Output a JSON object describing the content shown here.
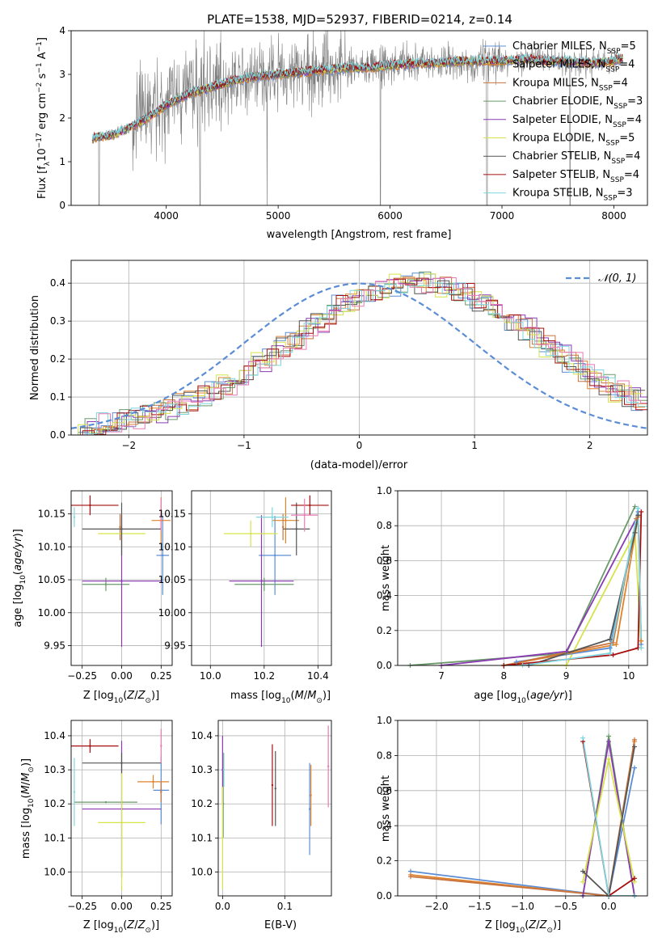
{
  "figure_title": "PLATE=1538, MJD=52937, FIBERID=0214, z=0.14",
  "colors": {
    "cMILES": "#5b8dd6",
    "sMILES": "#e0822b",
    "kMILES": "#c8743e",
    "cELODIE": "#6a9a6a",
    "sELODIE": "#8a3bb3",
    "kELODIE": "#d6e34a",
    "cSTELIB": "#555555",
    "sSTELIB": "#a50f0f",
    "kSTELIB": "#7fd6e0",
    "pink": "#e87ab5",
    "data": "#808080",
    "gauss": "#5b8dd6"
  },
  "chart_data": [
    {
      "id": "spectrum",
      "type": "line",
      "title": "PLATE=1538, MJD=52937, FIBERID=0214, z=0.14",
      "xlabel": "wavelength [Angstrom, rest frame]",
      "ylabel": "Flux [f_λ 10^-17 erg cm^-2 s^-1 A^-1]",
      "xlim": [
        3150,
        8300
      ],
      "ylim": [
        0,
        4
      ],
      "xticks": [
        "4000",
        "5000",
        "6000",
        "7000",
        "8000"
      ],
      "yticks": [
        "0",
        "1",
        "2",
        "3",
        "4"
      ],
      "grid": false,
      "legend_position": "top-right",
      "continuum_model": {
        "x": [
          3350,
          3500,
          3650,
          3800,
          4000,
          4200,
          4400,
          4600,
          4800,
          5000,
          5200,
          5400,
          5600,
          5800,
          6000,
          6200,
          6400,
          6600,
          6800,
          7000,
          7200,
          7400,
          7600,
          7800,
          8000,
          8050
        ],
        "y": [
          1.55,
          1.6,
          1.75,
          1.95,
          2.3,
          2.55,
          2.7,
          2.85,
          2.95,
          3.0,
          3.05,
          3.1,
          3.15,
          3.15,
          3.2,
          3.25,
          3.25,
          3.3,
          3.3,
          3.3,
          3.35,
          3.3,
          3.3,
          3.25,
          3.3,
          3.35
        ]
      },
      "series": [
        {
          "name": "Chabrier MILES, N_SSP=5",
          "label_main": "Chabrier MILES, N",
          "label_sub": "SSP",
          "label_tail": "=5",
          "color_key": "cMILES"
        },
        {
          "name": "Salpeter MILES, N_SSP=4",
          "label_main": "Salpeter MILES, N",
          "label_sub": "SSP",
          "label_tail": "=4",
          "color_key": "sMILES"
        },
        {
          "name": "Kroupa MILES, N_SSP=4",
          "label_main": "Kroupa MILES, N",
          "label_sub": "SSP",
          "label_tail": "=4",
          "color_key": "kMILES"
        },
        {
          "name": "Chabrier ELODIE, N_SSP=3",
          "label_main": "Chabrier ELODIE, N",
          "label_sub": "SSP",
          "label_tail": "=3",
          "color_key": "cELODIE"
        },
        {
          "name": "Salpeter ELODIE, N_SSP=4",
          "label_main": "Salpeter ELODIE, N",
          "label_sub": "SSP",
          "label_tail": "=4",
          "color_key": "sELODIE"
        },
        {
          "name": "Kroupa ELODIE, N_SSP=5",
          "label_main": "Kroupa ELODIE, N",
          "label_sub": "SSP",
          "label_tail": "=5",
          "color_key": "kELODIE"
        },
        {
          "name": "Chabrier STELIB, N_SSP=4",
          "label_main": "Chabrier STELIB, N",
          "label_sub": "SSP",
          "label_tail": "=4",
          "color_key": "cSTELIB"
        },
        {
          "name": "Salpeter STELIB, N_SSP=4",
          "label_main": "Salpeter STELIB, N",
          "label_sub": "SSP",
          "label_tail": "=4",
          "color_key": "sSTELIB"
        },
        {
          "name": "Kroupa STELIB, N_SSP=3",
          "label_main": "Kroupa STELIB, N",
          "label_sub": "SSP",
          "label_tail": "=3",
          "color_key": "kSTELIB"
        }
      ]
    },
    {
      "id": "residuals",
      "type": "bar",
      "xlabel": "(data-model)/error",
      "ylabel": "Normed distribution",
      "xlim": [
        -2.5,
        2.5
      ],
      "ylim": [
        0,
        0.46
      ],
      "xticks": [
        "−2",
        "−1",
        "0",
        "1",
        "2"
      ],
      "yticks": [
        "0.0",
        "0.1",
        "0.2",
        "0.3",
        "0.4"
      ],
      "grid": true,
      "bin_width": 0.1,
      "gaussian_legend": "𝒩(0, 1)",
      "legend_position": "top-right",
      "reference_histogram": [
        0.02,
        0.02,
        0.03,
        0.035,
        0.04,
        0.045,
        0.05,
        0.06,
        0.07,
        0.08,
        0.09,
        0.1,
        0.115,
        0.135,
        0.15,
        0.17,
        0.19,
        0.21,
        0.235,
        0.255,
        0.28,
        0.3,
        0.32,
        0.34,
        0.355,
        0.37,
        0.38,
        0.39,
        0.395,
        0.4,
        0.4,
        0.395,
        0.39,
        0.38,
        0.37,
        0.355,
        0.34,
        0.32,
        0.3,
        0.28,
        0.255,
        0.235,
        0.21,
        0.19,
        0.17,
        0.15,
        0.135,
        0.115,
        0.1,
        0.09
      ]
    },
    {
      "id": "age_vs_Z",
      "type": "scatter",
      "xlabel": "Z [log10(Z/Z⊙)]",
      "ylabel": "age  [log10(age/yr)]",
      "xlim": [
        -0.32,
        0.32
      ],
      "ylim": [
        9.92,
        10.185
      ],
      "xticks": [
        "−0.25",
        "0.00",
        "0.25"
      ],
      "yticks": [
        "9.95",
        "10.00",
        "10.05",
        "10.10",
        "10.15"
      ],
      "grid": true,
      "points": [
        {
          "color_key": "cMILES",
          "x": 0.26,
          "xerr": 0.04,
          "y": 10.087,
          "yerr": 0.06
        },
        {
          "color_key": "sMILES",
          "x": 0.25,
          "xerr": 0.06,
          "y": 10.14,
          "yerr": 0.035
        },
        {
          "color_key": "kMILES",
          "x": -0.01,
          "xerr": 0.0,
          "y": 10.13,
          "yerr": 0.02
        },
        {
          "color_key": "cELODIE",
          "x": -0.1,
          "xerr": 0.15,
          "y": 10.043,
          "yerr": 0.01
        },
        {
          "color_key": "sELODIE",
          "x": 0.0,
          "xerr": 0.25,
          "y": 10.048,
          "yerr": 0.1
        },
        {
          "color_key": "kELODIE",
          "x": 0.0,
          "xerr": 0.15,
          "y": 10.12,
          "yerr": 0.02
        },
        {
          "color_key": "cSTELIB",
          "x": 0.0,
          "xerr": 0.25,
          "y": 10.127,
          "yerr": 0.04
        },
        {
          "color_key": "sSTELIB",
          "x": -0.2,
          "xerr": 0.18,
          "y": 10.163,
          "yerr": 0.015
        },
        {
          "color_key": "kSTELIB",
          "x": -0.3,
          "xerr": 0.0,
          "y": 10.145,
          "yerr": 0.015
        },
        {
          "color_key": "pink",
          "x": 0.25,
          "xerr": 0.0,
          "y": 10.148,
          "yerr": 0.025
        }
      ]
    },
    {
      "id": "age_vs_mass",
      "type": "scatter",
      "xlabel": "mass [log10(M/M⊙)]",
      "ylabel": "",
      "xlim": [
        9.93,
        10.45
      ],
      "ylim": [
        9.92,
        10.185
      ],
      "xticks": [
        "10.0",
        "10.2",
        "10.4"
      ],
      "yticks": [
        "9.95",
        "10.00",
        "10.05",
        "10.10",
        "10.15"
      ],
      "grid": true,
      "points": [
        {
          "color_key": "cMILES",
          "x": 10.24,
          "xerr": 0.06,
          "y": 10.087,
          "yerr": 0.06
        },
        {
          "color_key": "sMILES",
          "x": 10.28,
          "xerr": 0.05,
          "y": 10.14,
          "yerr": 0.035
        },
        {
          "color_key": "kMILES",
          "x": 10.27,
          "xerr": 0.0,
          "y": 10.13,
          "yerr": 0.02
        },
        {
          "color_key": "cELODIE",
          "x": 10.2,
          "xerr": 0.11,
          "y": 10.043,
          "yerr": 0.01
        },
        {
          "color_key": "sELODIE",
          "x": 10.19,
          "xerr": 0.12,
          "y": 10.048,
          "yerr": 0.1
        },
        {
          "color_key": "kELODIE",
          "x": 10.15,
          "xerr": 0.1,
          "y": 10.12,
          "yerr": 0.02
        },
        {
          "color_key": "cSTELIB",
          "x": 10.32,
          "xerr": 0.05,
          "y": 10.127,
          "yerr": 0.04
        },
        {
          "color_key": "sSTELIB",
          "x": 10.37,
          "xerr": 0.07,
          "y": 10.163,
          "yerr": 0.015
        },
        {
          "color_key": "kSTELIB",
          "x": 10.23,
          "xerr": 0.06,
          "y": 10.145,
          "yerr": 0.015
        },
        {
          "color_key": "pink",
          "x": 10.35,
          "xerr": 0.05,
          "y": 10.148,
          "yerr": 0.025
        }
      ]
    },
    {
      "id": "mass_weight_vs_age",
      "type": "line",
      "xlabel": "age  [log10(age/yr)]",
      "ylabel": "mass weight",
      "xlim": [
        6.3,
        10.3
      ],
      "ylim": [
        0,
        1
      ],
      "xticks": [
        "7",
        "8",
        "9",
        "10"
      ],
      "yticks": [
        "0.0",
        "0.2",
        "0.4",
        "0.6",
        "0.8",
        "1.0"
      ],
      "grid": true,
      "series": [
        {
          "color_key": "cELODIE",
          "x": [
            6.5,
            9.0,
            10.1
          ],
          "y": [
            0.0,
            0.07,
            0.91
          ]
        },
        {
          "color_key": "sELODIE",
          "x": [
            7.0,
            9.0,
            10.15
          ],
          "y": [
            0.0,
            0.08,
            0.86
          ]
        },
        {
          "color_key": "kELODIE",
          "x": [
            8.0,
            9.0,
            10.1,
            10.2
          ],
          "y": [
            0.0,
            0.0,
            0.76,
            0.1
          ]
        },
        {
          "color_key": "cMILES",
          "x": [
            8.2,
            9.7,
            10.15,
            10.2
          ],
          "y": [
            0.02,
            0.1,
            0.88,
            0.12
          ]
        },
        {
          "color_key": "sMILES",
          "x": [
            8.0,
            9.8,
            10.15,
            10.2
          ],
          "y": [
            0.0,
            0.12,
            0.85,
            0.14
          ]
        },
        {
          "color_key": "kMILES",
          "x": [
            8.0,
            9.75,
            10.12
          ],
          "y": [
            0.0,
            0.13,
            0.84
          ]
        },
        {
          "color_key": "cSTELIB",
          "x": [
            8.4,
            9.7,
            10.1,
            10.15
          ],
          "y": [
            0.0,
            0.15,
            0.76,
            0.86
          ]
        },
        {
          "color_key": "sSTELIB",
          "x": [
            8.0,
            9.75,
            10.15,
            10.2
          ],
          "y": [
            0.0,
            0.06,
            0.1,
            0.88
          ]
        },
        {
          "color_key": "kSTELIB",
          "x": [
            8.3,
            9.7,
            10.15,
            10.2
          ],
          "y": [
            0.0,
            0.07,
            0.9,
            0.1
          ]
        }
      ]
    },
    {
      "id": "mass_vs_Z",
      "type": "scatter",
      "xlabel": "Z [log10(Z/Z⊙)]",
      "ylabel": "mass [log10(M/M⊙)]",
      "xlim": [
        -0.32,
        0.32
      ],
      "ylim": [
        9.93,
        10.445
      ],
      "xticks": [
        "−0.25",
        "0.00",
        "0.25"
      ],
      "yticks": [
        "10.0",
        "10.1",
        "10.2",
        "10.3",
        "10.4"
      ],
      "grid": true,
      "points": [
        {
          "color_key": "cMILES",
          "x": 0.25,
          "xerr": 0.05,
          "y": 10.24,
          "yerr": 0.1
        },
        {
          "color_key": "sMILES",
          "x": 0.2,
          "xerr": 0.1,
          "y": 10.265,
          "yerr": 0.02
        },
        {
          "color_key": "kMILES",
          "x": 0.25,
          "xerr": 0.0,
          "y": 10.235,
          "yerr": 0.03
        },
        {
          "color_key": "cELODIE",
          "x": -0.1,
          "xerr": 0.2,
          "y": 10.205,
          "yerr": 0.0
        },
        {
          "color_key": "sELODIE",
          "x": 0.0,
          "xerr": 0.25,
          "y": 10.185,
          "yerr": 0.2
        },
        {
          "color_key": "kELODIE",
          "x": 0.0,
          "xerr": 0.15,
          "y": 10.145,
          "yerr": 0.2
        },
        {
          "color_key": "cSTELIB",
          "x": 0.0,
          "xerr": 0.25,
          "y": 10.32,
          "yerr": 0.03
        },
        {
          "color_key": "sSTELIB",
          "x": -0.2,
          "xerr": 0.18,
          "y": 10.37,
          "yerr": 0.02
        },
        {
          "color_key": "kSTELIB",
          "x": -0.3,
          "xerr": 0.0,
          "y": 10.235,
          "yerr": 0.1
        },
        {
          "color_key": "pink",
          "x": 0.25,
          "xerr": 0.0,
          "y": 10.37,
          "yerr": 0.05
        }
      ]
    },
    {
      "id": "mass_vs_ebv",
      "type": "scatter",
      "xlabel": "E(B-V)",
      "ylabel": "",
      "xlim": [
        -0.007,
        0.175
      ],
      "ylim": [
        9.93,
        10.445
      ],
      "xticks": [
        "0.0",
        "0.1"
      ],
      "yticks": [
        "10.0",
        "10.1",
        "10.2",
        "10.3",
        "10.4"
      ],
      "grid": true,
      "points": [
        {
          "color_key": "cMILES",
          "x": 0.14,
          "xerr": 0.0,
          "y": 10.185,
          "yerr": 0.135
        },
        {
          "color_key": "sMILES",
          "x": 0.142,
          "xerr": 0.0,
          "y": 10.225,
          "yerr": 0.09
        },
        {
          "color_key": "kMILES",
          "x": 0.001,
          "xerr": 0.0,
          "y": 10.3,
          "yerr": 0.05
        },
        {
          "color_key": "cELODIE",
          "x": 0.001,
          "xerr": 0.0,
          "y": 10.2,
          "yerr": 0.1
        },
        {
          "color_key": "sELODIE",
          "x": 0.0,
          "xerr": 0.0,
          "y": 10.3,
          "yerr": 0.1
        },
        {
          "color_key": "kELODIE",
          "x": 0.0,
          "xerr": 0.0,
          "y": 10.1,
          "yerr": 0.15
        },
        {
          "color_key": "cSTELIB",
          "x": 0.085,
          "xerr": 0.0,
          "y": 10.245,
          "yerr": 0.11
        },
        {
          "color_key": "sSTELIB",
          "x": 0.08,
          "xerr": 0.0,
          "y": 10.255,
          "yerr": 0.12
        },
        {
          "color_key": "kSTELIB",
          "x": 0.002,
          "xerr": 0.0,
          "y": 10.3,
          "yerr": 0.05
        },
        {
          "color_key": "pink",
          "x": 0.17,
          "xerr": 0.0,
          "y": 10.31,
          "yerr": 0.12
        }
      ]
    },
    {
      "id": "mass_weight_vs_Z",
      "type": "line",
      "xlabel": "Z [log10(Z/Z⊙)]",
      "ylabel": "mass weight",
      "xlim": [
        -2.45,
        0.45
      ],
      "ylim": [
        0,
        1
      ],
      "xticks": [
        "−2.0",
        "−1.5",
        "−1.0",
        "−0.5",
        "0.0"
      ],
      "yticks": [
        "0.0",
        "0.2",
        "0.4",
        "0.6",
        "0.8",
        "1.0"
      ],
      "grid": true,
      "series": [
        {
          "color_key": "cMILES",
          "x": [
            -2.3,
            0.0,
            0.3
          ],
          "y": [
            0.14,
            0.0,
            0.73
          ]
        },
        {
          "color_key": "sMILES",
          "x": [
            -2.3,
            0.0,
            0.3
          ],
          "y": [
            0.12,
            0.0,
            0.88
          ]
        },
        {
          "color_key": "kMILES",
          "x": [
            -2.3,
            0.0,
            0.3
          ],
          "y": [
            0.11,
            0.0,
            0.89
          ]
        },
        {
          "color_key": "cELODIE",
          "x": [
            -0.3,
            0.0,
            0.3
          ],
          "y": [
            0.0,
            0.91,
            0.0
          ]
        },
        {
          "color_key": "sELODIE",
          "x": [
            -0.3,
            0.0,
            0.3
          ],
          "y": [
            0.0,
            0.88,
            0.0
          ]
        },
        {
          "color_key": "kELODIE",
          "x": [
            -0.3,
            0.0,
            0.3
          ],
          "y": [
            0.08,
            0.78,
            0.08
          ]
        },
        {
          "color_key": "cSTELIB",
          "x": [
            -0.3,
            0.0,
            0.3
          ],
          "y": [
            0.14,
            0.0,
            0.85
          ]
        },
        {
          "color_key": "sSTELIB",
          "x": [
            -0.3,
            0.0,
            0.3
          ],
          "y": [
            0.88,
            0.0,
            0.1
          ]
        },
        {
          "color_key": "kSTELIB",
          "x": [
            -0.3,
            0.0,
            0.3
          ],
          "y": [
            0.9,
            0.0,
            0.0
          ]
        }
      ]
    }
  ]
}
